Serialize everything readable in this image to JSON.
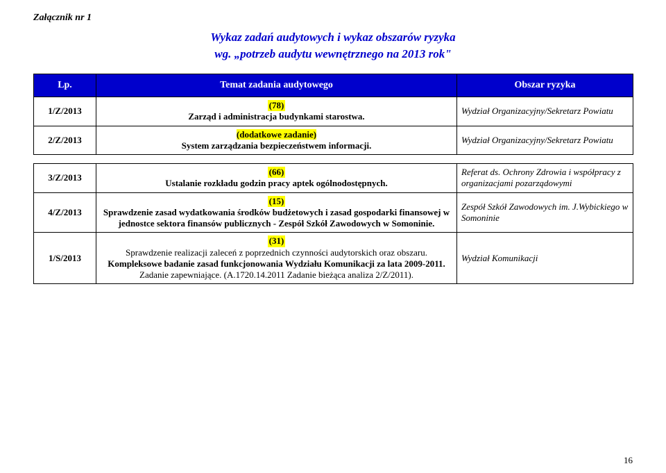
{
  "attachment": "Załącznik nr 1",
  "title": "Wykaz zadań audytowych i wykaz obszarów ryzyka",
  "subtitle": "wg. „potrzeb audytu wewnętrznego na 2013 rok\"",
  "columns": {
    "lp": "Lp.",
    "temat": "Temat zadania audytowego",
    "obszar": "Obszar ryzyka"
  },
  "rows": {
    "r1": {
      "lp": "1/Z/2013",
      "num": "(78)",
      "body": "Zarząd i administracja budynkami starostwa.",
      "obszar": "Wydział Organizacyjny/Sekretarz Powiatu"
    },
    "r2": {
      "lp": "2/Z/2013",
      "extra": "(dodatkowe zadanie)",
      "body": "System zarządzania bezpieczeństwem informacji.",
      "obszar": "Wydział Organizacyjny/Sekretarz Powiatu"
    },
    "r3": {
      "lp": "3/Z/2013",
      "num": "(66)",
      "body": "Ustalanie rozkładu godzin pracy aptek ogólnodostępnych.",
      "obszar": "Referat ds. Ochrony Zdrowia i współpracy z organizacjami pozarządowymi"
    },
    "r4": {
      "lp": "4/Z/2013",
      "num": "(15)",
      "body": "Sprawdzenie zasad wydatkowania środków budżetowych i zasad gospodarki finansowej w jednostce sektora finansów publicznych - Zespół Szkół Zawodowych w Somoninie.",
      "obszar": "Zespół Szkół Zawodowych im. J.Wybickiego w Somoninie"
    },
    "r5": {
      "lp": "1/S/2013",
      "num": "(31)",
      "line1": "Sprawdzenie realizacji zaleceń z poprzednich czynności audytorskich oraz obszaru.",
      "line2": "Kompleksowe badanie zasad funkcjonowania Wydziału Komunikacji za lata 2009-2011.",
      "line3": "Zadanie zapewniające. (A.1720.14.2011 Zadanie bieżąca analiza 2/Z/2011).",
      "obszar": "Wydział Komunikacji"
    }
  },
  "pagenum": "16"
}
